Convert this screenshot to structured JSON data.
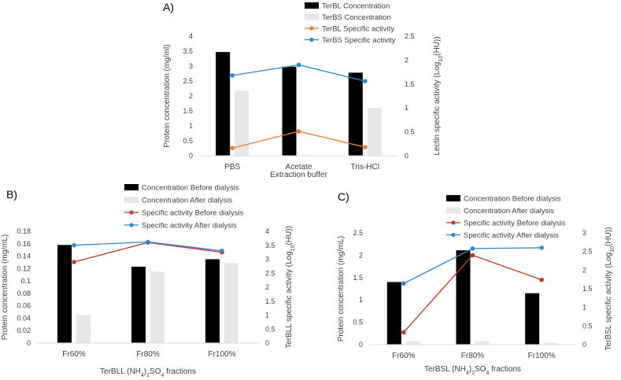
{
  "chart_data": [
    {
      "panel": "A)",
      "type": "bar",
      "categories": [
        "PBS",
        "Acetate",
        "Tris-HCl"
      ],
      "xlabel": "Extraction buffer",
      "ylabel": "Protein concentration (mg/ml)",
      "ylabel2": "Lectin specific activity (Log10(HU))",
      "ylim": [
        0,
        4
      ],
      "ylim2": [
        0,
        2.5
      ],
      "yticks": [
        "0",
        "0.5",
        "1",
        "1.5",
        "2",
        "2.5",
        "3",
        "3.5",
        "4"
      ],
      "y2ticks": [
        "0",
        "0.5",
        "1",
        "1.5",
        "2",
        "2.5"
      ],
      "series": [
        {
          "name": "TerBL Concentration",
          "kind": "bar",
          "axis": "left",
          "color": "#000000",
          "values": [
            3.47,
            2.98,
            2.78
          ]
        },
        {
          "name": "TerBS Concentration",
          "kind": "bar",
          "axis": "left",
          "color": "#e6e6e6",
          "values": [
            2.18,
            0.02,
            1.6
          ]
        },
        {
          "name": "TerBL Specific activity",
          "kind": "line",
          "axis": "right",
          "color": "#ed7d31",
          "values": [
            0.16,
            0.51,
            0.18
          ]
        },
        {
          "name": "TerBS Specific activity",
          "kind": "line",
          "axis": "right",
          "color": "#2e8ac7",
          "values": [
            1.68,
            1.9,
            1.56
          ]
        }
      ]
    },
    {
      "panel": "B)",
      "type": "bar",
      "categories": [
        "Fr60%",
        "Fr80%",
        "Fr100%"
      ],
      "xlabel": "TerBLL (NH4)2SO4 fractions",
      "ylabel": "Protein concentration (mg/mL)",
      "ylabel2": "TerBLL specific activity (Log10(HU))",
      "ylim": [
        0,
        0.18
      ],
      "ylim2": [
        0,
        4
      ],
      "yticks": [
        "0",
        "0.02",
        "0.04",
        "0.06",
        "0.08",
        "0.1",
        "0.12",
        "0.14",
        "0.16",
        "0.18"
      ],
      "y2ticks": [
        "0",
        "0.5",
        "1",
        "1.5",
        "2",
        "2.5",
        "3",
        "3.5",
        "4"
      ],
      "series": [
        {
          "name": "Concentration Before dialysis",
          "kind": "bar",
          "axis": "left",
          "color": "#000000",
          "values": [
            0.158,
            0.123,
            0.135
          ]
        },
        {
          "name": "Concentration After dialysis",
          "kind": "bar",
          "axis": "left",
          "color": "#e6e6e6",
          "values": [
            0.045,
            0.115,
            0.129
          ]
        },
        {
          "name": "Specific activity Before dialysis",
          "kind": "line",
          "axis": "right",
          "color": "#c0392b",
          "values": [
            2.9,
            3.6,
            3.25
          ]
        },
        {
          "name": "Specific activity After dialysis",
          "kind": "line",
          "axis": "right",
          "color": "#2e8ac7",
          "values": [
            3.5,
            3.62,
            3.3
          ]
        }
      ]
    },
    {
      "panel": "C)",
      "type": "bar",
      "categories": [
        "Fr60%",
        "Fr80%",
        "Fr100%"
      ],
      "xlabel": "TerBSL (NH4)2SO4 fractions",
      "ylabel": "Protein concentration (mg/mL)",
      "ylabel2": "TerBSL specific activity (Log10(HU))",
      "ylim": [
        0,
        2.5
      ],
      "ylim2": [
        0,
        3
      ],
      "yticks": [
        "0",
        "0.5",
        "1",
        "1.5",
        "2",
        "2.5"
      ],
      "y2ticks": [
        "0",
        "0.5",
        "1",
        "1.5",
        "2",
        "2.5",
        "3"
      ],
      "series": [
        {
          "name": "Concentration Before dialysis",
          "kind": "bar",
          "axis": "left",
          "color": "#000000",
          "values": [
            1.4,
            2.11,
            1.15
          ]
        },
        {
          "name": "Concentration After dialysis",
          "kind": "bar",
          "axis": "left",
          "color": "#e6e6e6",
          "values": [
            0.08,
            0.07,
            0.04
          ]
        },
        {
          "name": "Specific activity Before dialysis",
          "kind": "line",
          "axis": "right",
          "color": "#c0392b",
          "values": [
            0.33,
            2.4,
            1.74
          ]
        },
        {
          "name": "Specific activity After dialysis",
          "kind": "line",
          "axis": "right",
          "color": "#2e8ac7",
          "values": [
            1.64,
            2.58,
            2.6
          ]
        }
      ]
    }
  ]
}
